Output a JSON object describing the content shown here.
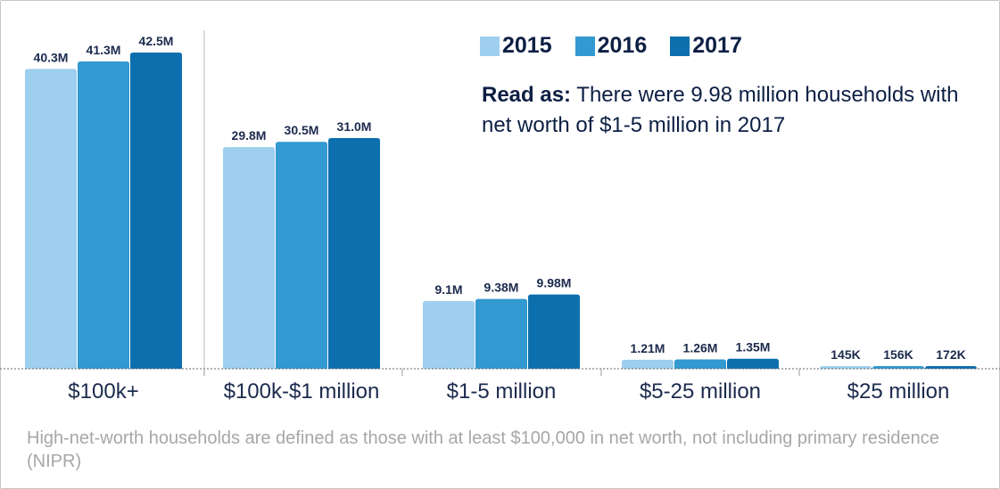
{
  "chart_data": {
    "type": "bar",
    "categories": [
      "$100k+",
      "$100k-$1 million",
      "$1-5 million",
      "$5-25 million",
      "$25 million"
    ],
    "series": [
      {
        "name": "2015",
        "color": "#9ecfee",
        "values": [
          40.3,
          29.8,
          9.1,
          1.21,
          0.145
        ],
        "labels": [
          "40.3M",
          "29.8M",
          "9.1M",
          "1.21M",
          "145K"
        ]
      },
      {
        "name": "2016",
        "color": "#3399d1",
        "values": [
          41.3,
          30.5,
          9.38,
          1.26,
          0.156
        ],
        "labels": [
          "41.3M",
          "30.5M",
          "9.38M",
          "1.26M",
          "156K"
        ]
      },
      {
        "name": "2017",
        "color": "#0d6fae",
        "values": [
          42.5,
          31.0,
          9.98,
          1.35,
          0.172
        ],
        "labels": [
          "42.5M",
          "31.0M",
          "9.98M",
          "1.35M",
          "172K"
        ]
      }
    ],
    "units": "millions of households",
    "ylim": [
      0,
      42.5
    ],
    "grid": false,
    "legend": "top-right"
  },
  "note": {
    "prefix": "Read as:",
    "text": " There were 9.98 million households with net worth of $1-5 million in 2017"
  },
  "footnote": "High-net-worth households are defined as those with at least $100,000 in net worth, not including primary residence (NIPR)"
}
